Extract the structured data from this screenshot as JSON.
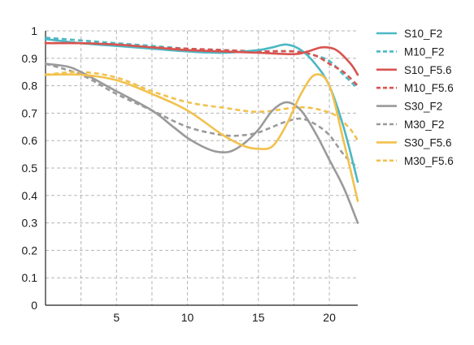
{
  "chart_data": {
    "type": "line",
    "title": "",
    "xlabel": "",
    "ylabel": "",
    "xlim": [
      0,
      22
    ],
    "ylim": [
      0,
      1
    ],
    "x_ticks": [
      5,
      10,
      15,
      20
    ],
    "x_grid": [
      2.5,
      5,
      7.5,
      10,
      12.5,
      15,
      17.5,
      20
    ],
    "y_ticks": [
      0,
      0.1,
      0.2,
      0.3,
      0.4,
      0.5,
      0.6,
      0.7,
      0.8,
      0.9,
      1
    ],
    "y_tick_labels": [
      "0",
      "0.1",
      "0.2",
      "0.3",
      "0.4",
      "0.5",
      "0.6",
      "0.7",
      "0.8",
      "0.9",
      "1"
    ],
    "x_tick_labels": [
      "5",
      "10",
      "15",
      "20"
    ],
    "grid": true,
    "legend_position": "right",
    "series": [
      {
        "name": "S10_F2",
        "color": "#4bb8c4",
        "dashed": false,
        "points": [
          [
            0,
            0.97
          ],
          [
            2.5,
            0.955
          ],
          [
            5,
            0.945
          ],
          [
            7.5,
            0.935
          ],
          [
            10,
            0.925
          ],
          [
            12.5,
            0.92
          ],
          [
            15,
            0.93
          ],
          [
            16,
            0.94
          ],
          [
            17,
            0.95
          ],
          [
            18,
            0.93
          ],
          [
            19,
            0.88
          ],
          [
            20,
            0.8
          ],
          [
            21,
            0.65
          ],
          [
            22,
            0.45
          ]
        ]
      },
      {
        "name": "M10_F2",
        "color": "#4bb8c4",
        "dashed": true,
        "points": [
          [
            0,
            0.975
          ],
          [
            2.5,
            0.965
          ],
          [
            5,
            0.955
          ],
          [
            7.5,
            0.945
          ],
          [
            10,
            0.935
          ],
          [
            12.5,
            0.93
          ],
          [
            15,
            0.925
          ],
          [
            17.5,
            0.925
          ],
          [
            19,
            0.91
          ],
          [
            20,
            0.89
          ],
          [
            21,
            0.84
          ],
          [
            22,
            0.79
          ]
        ]
      },
      {
        "name": "S10_F5.6",
        "color": "#d9534f",
        "dashed": false,
        "points": [
          [
            0,
            0.955
          ],
          [
            2.5,
            0.955
          ],
          [
            5,
            0.95
          ],
          [
            7.5,
            0.94
          ],
          [
            10,
            0.93
          ],
          [
            12.5,
            0.925
          ],
          [
            15,
            0.92
          ],
          [
            17.5,
            0.915
          ],
          [
            18.5,
            0.925
          ],
          [
            19.5,
            0.94
          ],
          [
            20.5,
            0.93
          ],
          [
            21.5,
            0.88
          ],
          [
            22,
            0.84
          ]
        ]
      },
      {
        "name": "M10_F5.6",
        "color": "#d9534f",
        "dashed": true,
        "points": [
          [
            0,
            0.955
          ],
          [
            2.5,
            0.955
          ],
          [
            5,
            0.95
          ],
          [
            7.5,
            0.94
          ],
          [
            10,
            0.935
          ],
          [
            12.5,
            0.93
          ],
          [
            15,
            0.925
          ],
          [
            17.5,
            0.925
          ],
          [
            19,
            0.91
          ],
          [
            20,
            0.88
          ],
          [
            21,
            0.85
          ],
          [
            22,
            0.8
          ]
        ]
      },
      {
        "name": "S30_F2",
        "color": "#9a9a9a",
        "dashed": false,
        "points": [
          [
            0,
            0.88
          ],
          [
            1.5,
            0.87
          ],
          [
            2.5,
            0.85
          ],
          [
            5,
            0.78
          ],
          [
            7.5,
            0.71
          ],
          [
            9,
            0.65
          ],
          [
            10,
            0.61
          ],
          [
            11,
            0.58
          ],
          [
            12,
            0.56
          ],
          [
            13,
            0.56
          ],
          [
            14,
            0.59
          ],
          [
            15,
            0.64
          ],
          [
            16,
            0.71
          ],
          [
            17,
            0.74
          ],
          [
            18,
            0.71
          ],
          [
            19,
            0.63
          ],
          [
            20,
            0.53
          ],
          [
            21,
            0.43
          ],
          [
            22,
            0.3
          ]
        ]
      },
      {
        "name": "M30_F2",
        "color": "#9a9a9a",
        "dashed": true,
        "points": [
          [
            0,
            0.88
          ],
          [
            2.5,
            0.84
          ],
          [
            5,
            0.77
          ],
          [
            7.5,
            0.71
          ],
          [
            10,
            0.65
          ],
          [
            12.5,
            0.62
          ],
          [
            14,
            0.62
          ],
          [
            15,
            0.63
          ],
          [
            16,
            0.65
          ],
          [
            17,
            0.67
          ],
          [
            18,
            0.68
          ],
          [
            19,
            0.66
          ],
          [
            20,
            0.62
          ],
          [
            21,
            0.55
          ],
          [
            22,
            0.5
          ]
        ]
      },
      {
        "name": "S30_F5.6",
        "color": "#f2c14e",
        "dashed": false,
        "points": [
          [
            0,
            0.84
          ],
          [
            2.5,
            0.84
          ],
          [
            5,
            0.82
          ],
          [
            7.5,
            0.77
          ],
          [
            10,
            0.71
          ],
          [
            12.5,
            0.62
          ],
          [
            14,
            0.58
          ],
          [
            15,
            0.57
          ],
          [
            16,
            0.58
          ],
          [
            17,
            0.66
          ],
          [
            18,
            0.77
          ],
          [
            19,
            0.84
          ],
          [
            20,
            0.8
          ],
          [
            21,
            0.6
          ],
          [
            22,
            0.38
          ]
        ]
      },
      {
        "name": "M30_F5.6",
        "color": "#f2c14e",
        "dashed": true,
        "points": [
          [
            0,
            0.84
          ],
          [
            2.5,
            0.85
          ],
          [
            5,
            0.83
          ],
          [
            7.5,
            0.78
          ],
          [
            10,
            0.74
          ],
          [
            12.5,
            0.72
          ],
          [
            15,
            0.705
          ],
          [
            17.5,
            0.72
          ],
          [
            18.5,
            0.72
          ],
          [
            19.5,
            0.71
          ],
          [
            20.5,
            0.69
          ],
          [
            21.5,
            0.64
          ],
          [
            22,
            0.6
          ]
        ]
      }
    ]
  }
}
